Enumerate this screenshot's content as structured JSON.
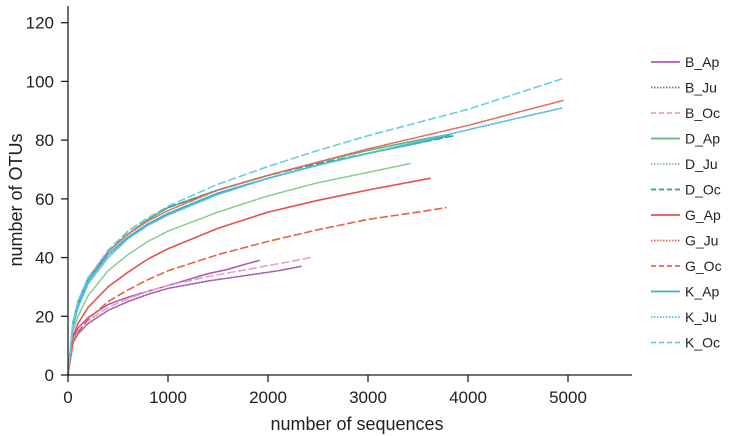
{
  "chart_data": {
    "type": "line",
    "title": "",
    "xlabel": "number of sequences",
    "ylabel": "number of OTUs",
    "xlim": [
      0,
      5600
    ],
    "ylim": [
      0,
      125
    ],
    "xticks": [
      0,
      1000,
      2000,
      3000,
      4000,
      5000
    ],
    "yticks": [
      0,
      20,
      40,
      60,
      80,
      100,
      120
    ],
    "grid": false,
    "legend_position": "right",
    "series": [
      {
        "name": "B_Ap",
        "color": "#b05fb0",
        "dash": "solid",
        "x": [
          0,
          50,
          100,
          200,
          400,
          600,
          800,
          1000,
          1200,
          1400,
          1600,
          1750,
          1910
        ],
        "y": [
          0,
          12,
          16,
          19.5,
          24,
          26.5,
          28.5,
          30.5,
          32.5,
          34.5,
          36,
          37.5,
          39
        ]
      },
      {
        "name": "B_Ju",
        "color": "#9f5aa8",
        "dash": "dotted",
        "x": [
          0,
          50,
          100,
          200,
          400,
          600,
          800,
          1000,
          1400,
          1800,
          2100,
          2330
        ],
        "y": [
          0,
          11,
          14,
          17.5,
          22,
          25,
          27.5,
          29.5,
          32,
          34,
          35.5,
          37
        ]
      },
      {
        "name": "B_Oc",
        "color": "#e7a0c6",
        "dash": "dashed",
        "x": [
          0,
          50,
          100,
          200,
          400,
          600,
          800,
          1000,
          1400,
          1800,
          2200,
          2420
        ],
        "y": [
          0,
          12,
          15,
          18.5,
          23,
          26,
          28.5,
          30.5,
          33.5,
          36,
          38.5,
          40
        ]
      },
      {
        "name": "D_Ap",
        "color": "#5bb56e",
        "dash": "solid",
        "x": [
          0,
          50,
          100,
          200,
          400,
          600,
          800,
          1000,
          1500,
          2000,
          2500,
          3000,
          3500,
          3830
        ],
        "y": [
          0,
          18,
          25,
          33,
          42,
          48,
          53,
          57,
          63,
          68,
          72.5,
          76.5,
          80,
          82
        ]
      },
      {
        "name": "D_Ju",
        "color": "#82cc8e",
        "dash": "dotted",
        "x": [
          0,
          50,
          100,
          200,
          400,
          600,
          800,
          1000,
          1500,
          2000,
          2500,
          3000,
          3420
        ],
        "y": [
          0,
          15,
          20,
          27,
          35.5,
          41,
          45.5,
          49,
          55.5,
          61,
          65.5,
          69,
          72
        ]
      },
      {
        "name": "D_Oc",
        "color": "#2f9f86",
        "dash": "dashed",
        "x": [
          0,
          50,
          100,
          200,
          400,
          600,
          800,
          1000,
          1500,
          2000,
          2500,
          3000,
          3500,
          3860
        ],
        "y": [
          0,
          18,
          25,
          33,
          42,
          49,
          53.5,
          57,
          63,
          68,
          72,
          75.5,
          79,
          81.5
        ]
      },
      {
        "name": "G_Ap",
        "color": "#e4524c",
        "dash": "solid",
        "x": [
          0,
          50,
          100,
          200,
          400,
          600,
          800,
          1000,
          1500,
          2000,
          2500,
          3000,
          3620
        ],
        "y": [
          0,
          13,
          17.5,
          23,
          30,
          35,
          39.5,
          43,
          50,
          55.5,
          59.5,
          63,
          67
        ]
      },
      {
        "name": "G_Ju",
        "color": "#e06a5c",
        "dash": "dotted",
        "x": [
          0,
          50,
          100,
          200,
          400,
          600,
          800,
          1000,
          1500,
          2000,
          2500,
          3000,
          3500,
          4000,
          4500,
          4950
        ],
        "y": [
          0,
          17,
          24,
          32,
          42,
          48,
          52.5,
          56,
          63,
          68,
          72.5,
          77,
          81,
          85,
          89.5,
          93.5
        ]
      },
      {
        "name": "G_Oc",
        "color": "#e8643f",
        "dash": "dashed",
        "x": [
          0,
          50,
          100,
          200,
          400,
          600,
          800,
          1000,
          1500,
          2000,
          2500,
          3000,
          3500,
          3780
        ],
        "y": [
          0,
          11,
          14.5,
          19,
          25,
          29,
          32.5,
          35.5,
          41,
          45.5,
          49.5,
          53,
          55.5,
          57
        ]
      },
      {
        "name": "K_Ap",
        "color": "#40a9cf",
        "dash": "solid",
        "x": [
          0,
          50,
          100,
          200,
          400,
          600,
          800,
          1000,
          1500,
          2000,
          2500,
          3000,
          3500,
          3810
        ],
        "y": [
          0,
          17,
          24,
          32,
          41,
          47,
          51.5,
          55,
          62,
          67,
          71.5,
          75.5,
          79,
          81.5
        ]
      },
      {
        "name": "K_Ju",
        "color": "#4dbde0",
        "dash": "dotted",
        "x": [
          0,
          50,
          100,
          200,
          400,
          600,
          800,
          1000,
          1500,
          2000,
          2500,
          3000,
          3500,
          4000,
          4500,
          4950
        ],
        "y": [
          0,
          16,
          23,
          31,
          40,
          46.5,
          51,
          54.5,
          61.5,
          67,
          71.5,
          75.5,
          79.5,
          83.5,
          87.5,
          91
        ]
      },
      {
        "name": "K_Oc",
        "color": "#6ccbe8",
        "dash": "dashed",
        "x": [
          0,
          50,
          100,
          200,
          400,
          600,
          800,
          1000,
          1500,
          2000,
          2500,
          3000,
          3500,
          4000,
          4500,
          4950
        ],
        "y": [
          0,
          18,
          25,
          33,
          42.5,
          49,
          53.5,
          57.5,
          65,
          71,
          76.5,
          81.5,
          86,
          90.5,
          96,
          101
        ]
      }
    ]
  }
}
